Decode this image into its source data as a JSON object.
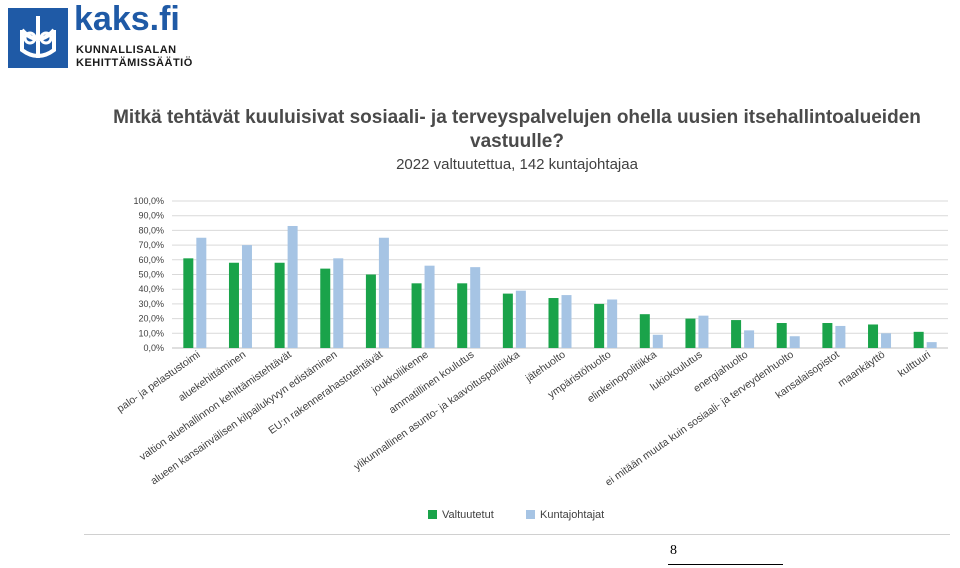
{
  "logo": {
    "brand": "kaks.fi",
    "line1": "KUNNALLISALAN",
    "line2": "KEHITTÄMISSÄÄTIÖ",
    "icon": "kaks-foundation-emblem"
  },
  "page_number": "8",
  "colors": {
    "valtuutetut": "#1aa34a",
    "kuntajohtajat": "#a6c4e4",
    "grid": "#d9d9d9",
    "text": "#404040"
  },
  "chart_data": {
    "type": "bar",
    "title": "Mitkä tehtävät kuuluisivat sosiaali- ja terveyspalvelujen ohella uusien itsehallintoalueiden vastuulle?",
    "subtitle": "2022 valtuutettua, 142 kuntajohtajaa",
    "ylim": [
      0,
      100
    ],
    "yticks": [
      "0,0%",
      "10,0%",
      "20,0%",
      "30,0%",
      "40,0%",
      "50,0%",
      "60,0%",
      "70,0%",
      "80,0%",
      "90,0%",
      "100,0%"
    ],
    "grid": true,
    "legend_position": "bottom",
    "categories": [
      "palo- ja pelastustoimi",
      "aluekehittäminen",
      "valtion aluehallinnon kehittämistehtävät",
      "alueen kansainvälisen kilpailukyvyn edistäminen",
      "EU:n rakennerahastotehtävät",
      "joukkoliikenne",
      "ammatillinen koulutus",
      "ylikunnallinen asunto- ja kaavoituspolitiikka",
      "jätehuolto",
      "ympäristöhuolto",
      "elinkeinopolitiikka",
      "lukiokoulutus",
      "energiahuolto",
      "ei mitään muuta kuin sosiaali- ja terveydenhuolto",
      "kansalaisopistot",
      "maankäyttö",
      "kulttuuri"
    ],
    "series": [
      {
        "name": "Valtuutetut",
        "values": [
          61,
          58,
          58,
          54,
          50,
          44,
          44,
          37,
          34,
          30,
          23,
          20,
          19,
          17,
          17,
          16,
          11
        ]
      },
      {
        "name": "Kuntajohtajat",
        "values": [
          75,
          70,
          83,
          61,
          75,
          56,
          55,
          39,
          36,
          33,
          9,
          22,
          12,
          8,
          15,
          10,
          4
        ]
      }
    ]
  }
}
